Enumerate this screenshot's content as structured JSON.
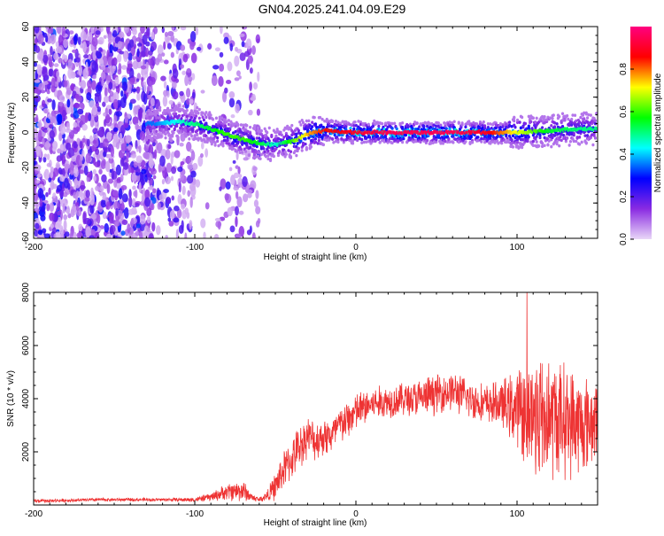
{
  "title": "GN04.2025.241.04.09.E29",
  "chart_data": [
    {
      "type": "heatmap",
      "title": "GN04.2025.241.04.09.E29",
      "xlabel": "Height of straight line (km)",
      "ylabel": "Frequency (Hz)",
      "xlim": [
        -200,
        150
      ],
      "ylim": [
        -60,
        60
      ],
      "xticks": [
        "-200",
        "-100",
        "0",
        "100"
      ],
      "yticks": [
        "-60",
        "-40",
        "-20",
        "0",
        "20",
        "40",
        "60"
      ],
      "colorbar": {
        "label": "Normalized spectral amplitude",
        "range": [
          0.0,
          1.0
        ],
        "ticks": [
          "0.0",
          "0.2",
          "0.4",
          "0.6",
          "0.8"
        ],
        "colors": [
          "#e9d6f7",
          "#8a2be2",
          "#0000ff",
          "#00ffff",
          "#00ff00",
          "#ffff00",
          "#ff0000",
          "#ff0080"
        ]
      },
      "ridge": {
        "x": [
          -125,
          -110,
          -100,
          -90,
          -80,
          -70,
          -60,
          -50,
          -40,
          -30,
          -20,
          0,
          20,
          40,
          60,
          80,
          100,
          120,
          140,
          150
        ],
        "freq": [
          5,
          6,
          5,
          2,
          -1,
          -4,
          -6,
          -7,
          -5,
          -1,
          1,
          0,
          0,
          0,
          0,
          0,
          0,
          1,
          2,
          2
        ],
        "amplitude": [
          0.35,
          0.45,
          0.5,
          0.55,
          0.6,
          0.6,
          0.55,
          0.45,
          0.6,
          0.75,
          0.85,
          0.9,
          0.95,
          0.95,
          0.95,
          0.9,
          0.7,
          0.55,
          0.5,
          0.5
        ]
      }
    },
    {
      "type": "line",
      "xlabel": "Height of straight line (km)",
      "ylabel": "SNR (10 * v/v)",
      "xlim": [
        -200,
        150
      ],
      "ylim": [
        0,
        8000
      ],
      "xticks": [
        "-200",
        "-100",
        "0",
        "100"
      ],
      "yticks": [
        "2000",
        "4000",
        "6000",
        "8000"
      ],
      "color": "#ee3333",
      "series": [
        {
          "name": "SNR",
          "x": [
            -200,
            -180,
            -160,
            -140,
            -120,
            -100,
            -90,
            -80,
            -70,
            -65,
            -60,
            -55,
            -50,
            -45,
            -40,
            -35,
            -30,
            -25,
            -20,
            -15,
            -10,
            -5,
            0,
            10,
            20,
            30,
            40,
            50,
            60,
            70,
            80,
            90,
            100,
            105,
            110,
            115,
            120,
            130,
            140,
            150
          ],
          "mean": [
            150,
            170,
            200,
            200,
            200,
            200,
            300,
            500,
            550,
            300,
            200,
            350,
            700,
            1300,
            1700,
            2200,
            2600,
            2400,
            2600,
            2600,
            3000,
            3200,
            3500,
            3800,
            3900,
            4000,
            4000,
            4200,
            4300,
            4000,
            3800,
            3800,
            3600,
            3600,
            3400,
            3400,
            3300,
            3200,
            3000,
            3200
          ],
          "spread": [
            60,
            60,
            60,
            60,
            60,
            80,
            150,
            300,
            400,
            150,
            80,
            200,
            500,
            700,
            700,
            800,
            700,
            700,
            700,
            700,
            700,
            700,
            700,
            600,
            600,
            600,
            700,
            700,
            700,
            700,
            700,
            800,
            1400,
            1900,
            2400,
            2400,
            2200,
            2000,
            1800,
            1500
          ]
        }
      ]
    }
  ]
}
